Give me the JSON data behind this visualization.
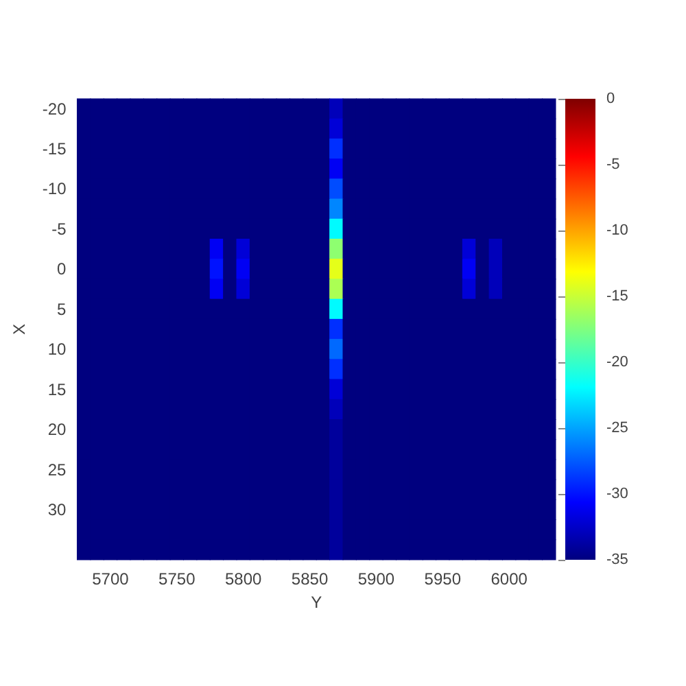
{
  "chart_data": {
    "type": "heatmap",
    "xlabel": "Y",
    "ylabel": "X",
    "categories": [
      null,
      null,
      "5700",
      null,
      null,
      null,
      null,
      "5750",
      null,
      null,
      null,
      null,
      "5800",
      null,
      null,
      null,
      null,
      "5850",
      null,
      null,
      null,
      null,
      "5900",
      null,
      null,
      null,
      null,
      "5950",
      null,
      null,
      null,
      null,
      "6000",
      null,
      null,
      null
    ],
    "y_categories": [
      "-20",
      null,
      "-15",
      null,
      "-10",
      null,
      "-5",
      null,
      "0",
      null,
      "5",
      null,
      "10",
      null,
      "15",
      null,
      "20",
      null,
      "25",
      null,
      "30",
      null,
      null
    ],
    "clim": [
      -35,
      0
    ],
    "cticks": [
      -35,
      -30,
      -25,
      -20,
      -15,
      -10,
      -5,
      0
    ],
    "cells": [
      [
        -35,
        -35,
        -35,
        -35,
        -35,
        -35,
        -35,
        -35,
        -35,
        -35,
        -35,
        -35,
        -35,
        -35,
        -35,
        -35,
        -35,
        -35,
        -35,
        -33,
        -35,
        -35,
        -35,
        -35,
        -35,
        -35,
        -35,
        -35,
        -35,
        -35,
        -35,
        -35,
        -35,
        -35,
        -35,
        -35
      ],
      [
        -35,
        -35,
        -35,
        -35,
        -35,
        -35,
        -35,
        -35,
        -35,
        -35,
        -35,
        -35,
        -35,
        -35,
        -35,
        -35,
        -35,
        -35,
        -35,
        -32,
        -35,
        -35,
        -35,
        -35,
        -35,
        -35,
        -35,
        -35,
        -35,
        -35,
        -35,
        -35,
        -35,
        -35,
        -35,
        -35
      ],
      [
        -35,
        -35,
        -35,
        -35,
        -35,
        -35,
        -35,
        -35,
        -35,
        -35,
        -35,
        -35,
        -35,
        -35,
        -35,
        -35,
        -35,
        -35,
        -35,
        -29,
        -35,
        -35,
        -35,
        -35,
        -35,
        -35,
        -35,
        -35,
        -35,
        -35,
        -35,
        -35,
        -35,
        -35,
        -35,
        -35
      ],
      [
        -35,
        -35,
        -35,
        -35,
        -35,
        -35,
        -35,
        -35,
        -35,
        -35,
        -35,
        -35,
        -35,
        -35,
        -35,
        -35,
        -35,
        -35,
        -35,
        -31,
        -35,
        -35,
        -35,
        -35,
        -35,
        -35,
        -35,
        -35,
        -35,
        -35,
        -35,
        -35,
        -35,
        -35,
        -35,
        -35
      ],
      [
        -35,
        -35,
        -35,
        -35,
        -35,
        -35,
        -35,
        -35,
        -35,
        -35,
        -35,
        -35,
        -35,
        -35,
        -35,
        -35,
        -35,
        -35,
        -35,
        -28,
        -35,
        -35,
        -35,
        -35,
        -35,
        -35,
        -35,
        -35,
        -35,
        -35,
        -35,
        -35,
        -35,
        -35,
        -35,
        -35
      ],
      [
        -35,
        -35,
        -35,
        -35,
        -35,
        -35,
        -35,
        -35,
        -35,
        -35,
        -35,
        -35,
        -35,
        -35,
        -35,
        -35,
        -35,
        -35,
        -35,
        -26,
        -35,
        -35,
        -35,
        -35,
        -35,
        -35,
        -35,
        -35,
        -35,
        -35,
        -35,
        -35,
        -35,
        -35,
        -35,
        -35
      ],
      [
        -35,
        -35,
        -35,
        -35,
        -35,
        -35,
        -35,
        -35,
        -35,
        -35,
        -35,
        -35,
        -35,
        -35,
        -35,
        -35,
        -35,
        -35,
        -35,
        -22,
        -35,
        -35,
        -35,
        -35,
        -35,
        -35,
        -35,
        -35,
        -35,
        -35,
        -35,
        -35,
        -35,
        -35,
        -35,
        -35
      ],
      [
        -35,
        -35,
        -35,
        -35,
        -35,
        -35,
        -35,
        -35,
        -35,
        -35,
        -31,
        -35,
        -32,
        -35,
        -35,
        -35,
        -35,
        -35,
        -35,
        -17,
        -35,
        -35,
        -35,
        -35,
        -35,
        -35,
        -35,
        -35,
        -35,
        -32,
        -35,
        -33,
        -35,
        -35,
        -35,
        -35
      ],
      [
        -35,
        -35,
        -35,
        -35,
        -35,
        -35,
        -35,
        -35,
        -35,
        -35,
        -30,
        -35,
        -31,
        -35,
        -35,
        -35,
        -35,
        -35,
        -35,
        -14,
        -35,
        -35,
        -35,
        -35,
        -35,
        -35,
        -35,
        -35,
        -35,
        -31,
        -35,
        -33,
        -35,
        -35,
        -35,
        -35
      ],
      [
        -35,
        -35,
        -35,
        -35,
        -35,
        -35,
        -35,
        -35,
        -35,
        -35,
        -31,
        -35,
        -32,
        -35,
        -35,
        -35,
        -35,
        -35,
        -35,
        -16,
        -35,
        -35,
        -35,
        -35,
        -35,
        -35,
        -35,
        -35,
        -35,
        -32,
        -35,
        -33,
        -35,
        -35,
        -35,
        -35
      ],
      [
        -35,
        -35,
        -35,
        -35,
        -35,
        -35,
        -35,
        -35,
        -35,
        -35,
        -35,
        -35,
        -35,
        -35,
        -35,
        -35,
        -35,
        -35,
        -35,
        -22,
        -35,
        -35,
        -35,
        -35,
        -35,
        -35,
        -35,
        -35,
        -35,
        -35,
        -35,
        -35,
        -35,
        -35,
        -35,
        -35
      ],
      [
        -35,
        -35,
        -35,
        -35,
        -35,
        -35,
        -35,
        -35,
        -35,
        -35,
        -35,
        -35,
        -35,
        -35,
        -35,
        -35,
        -35,
        -35,
        -35,
        -29,
        -35,
        -35,
        -35,
        -35,
        -35,
        -35,
        -35,
        -35,
        -35,
        -35,
        -35,
        -35,
        -35,
        -35,
        -35,
        -35
      ],
      [
        -35,
        -35,
        -35,
        -35,
        -35,
        -35,
        -35,
        -35,
        -35,
        -35,
        -35,
        -35,
        -35,
        -35,
        -35,
        -35,
        -35,
        -35,
        -35,
        -27,
        -35,
        -35,
        -35,
        -35,
        -35,
        -35,
        -35,
        -35,
        -35,
        -35,
        -35,
        -35,
        -35,
        -35,
        -35,
        -35
      ],
      [
        -35,
        -35,
        -35,
        -35,
        -35,
        -35,
        -35,
        -35,
        -35,
        -35,
        -35,
        -35,
        -35,
        -35,
        -35,
        -35,
        -35,
        -35,
        -35,
        -29,
        -35,
        -35,
        -35,
        -35,
        -35,
        -35,
        -35,
        -35,
        -35,
        -35,
        -35,
        -35,
        -35,
        -35,
        -35,
        -35
      ],
      [
        -35,
        -35,
        -35,
        -35,
        -35,
        -35,
        -35,
        -35,
        -35,
        -35,
        -35,
        -35,
        -35,
        -35,
        -35,
        -35,
        -35,
        -35,
        -35,
        -32,
        -35,
        -35,
        -35,
        -35,
        -35,
        -35,
        -35,
        -35,
        -35,
        -35,
        -35,
        -35,
        -35,
        -35,
        -35,
        -35
      ],
      [
        -35,
        -35,
        -35,
        -35,
        -35,
        -35,
        -35,
        -35,
        -35,
        -35,
        -35,
        -35,
        -35,
        -35,
        -35,
        -35,
        -35,
        -35,
        -35,
        -33,
        -35,
        -35,
        -35,
        -35,
        -35,
        -35,
        -35,
        -35,
        -35,
        -35,
        -35,
        -35,
        -35,
        -35,
        -35,
        -35
      ],
      [
        -35,
        -35,
        -35,
        -35,
        -35,
        -35,
        -35,
        -35,
        -35,
        -35,
        -35,
        -35,
        -35,
        -35,
        -35,
        -35,
        -35,
        -35,
        -35,
        -34,
        -35,
        -35,
        -35,
        -35,
        -35,
        -35,
        -35,
        -35,
        -35,
        -35,
        -35,
        -35,
        -35,
        -35,
        -35,
        -35
      ],
      [
        -35,
        -35,
        -35,
        -35,
        -35,
        -35,
        -35,
        -35,
        -35,
        -35,
        -35,
        -35,
        -35,
        -35,
        -35,
        -35,
        -35,
        -35,
        -35,
        -34,
        -35,
        -35,
        -35,
        -35,
        -35,
        -35,
        -35,
        -35,
        -35,
        -35,
        -35,
        -35,
        -35,
        -35,
        -35,
        -35
      ],
      [
        -35,
        -35,
        -35,
        -35,
        -35,
        -35,
        -35,
        -35,
        -35,
        -35,
        -35,
        -35,
        -35,
        -35,
        -35,
        -35,
        -35,
        -35,
        -35,
        -34,
        -35,
        -35,
        -35,
        -35,
        -35,
        -35,
        -35,
        -35,
        -35,
        -35,
        -35,
        -35,
        -35,
        -35,
        -35,
        -35
      ],
      [
        -35,
        -35,
        -35,
        -35,
        -35,
        -35,
        -35,
        -35,
        -35,
        -35,
        -35,
        -35,
        -35,
        -35,
        -35,
        -35,
        -35,
        -35,
        -35,
        -34,
        -35,
        -35,
        -35,
        -35,
        -35,
        -35,
        -35,
        -35,
        -35,
        -35,
        -35,
        -35,
        -35,
        -35,
        -35,
        -35
      ],
      [
        -35,
        -35,
        -35,
        -35,
        -35,
        -35,
        -35,
        -35,
        -35,
        -35,
        -35,
        -35,
        -35,
        -35,
        -35,
        -35,
        -35,
        -35,
        -35,
        -34,
        -35,
        -35,
        -35,
        -35,
        -35,
        -35,
        -35,
        -35,
        -35,
        -35,
        -35,
        -35,
        -35,
        -35,
        -35,
        -35
      ],
      [
        -35,
        -35,
        -35,
        -35,
        -35,
        -35,
        -35,
        -35,
        -35,
        -35,
        -35,
        -35,
        -35,
        -35,
        -35,
        -35,
        -35,
        -35,
        -35,
        -34,
        -35,
        -35,
        -35,
        -35,
        -35,
        -35,
        -35,
        -35,
        -35,
        -35,
        -35,
        -35,
        -35,
        -35,
        -35,
        -35
      ],
      [
        -35,
        -35,
        -35,
        -35,
        -35,
        -35,
        -35,
        -35,
        -35,
        -35,
        -35,
        -35,
        -35,
        -35,
        -35,
        -35,
        -35,
        -35,
        -35,
        -34,
        -35,
        -35,
        -35,
        -35,
        -35,
        -35,
        -35,
        -35,
        -35,
        -35,
        -35,
        -35,
        -35,
        -35,
        -35,
        -35
      ]
    ]
  }
}
